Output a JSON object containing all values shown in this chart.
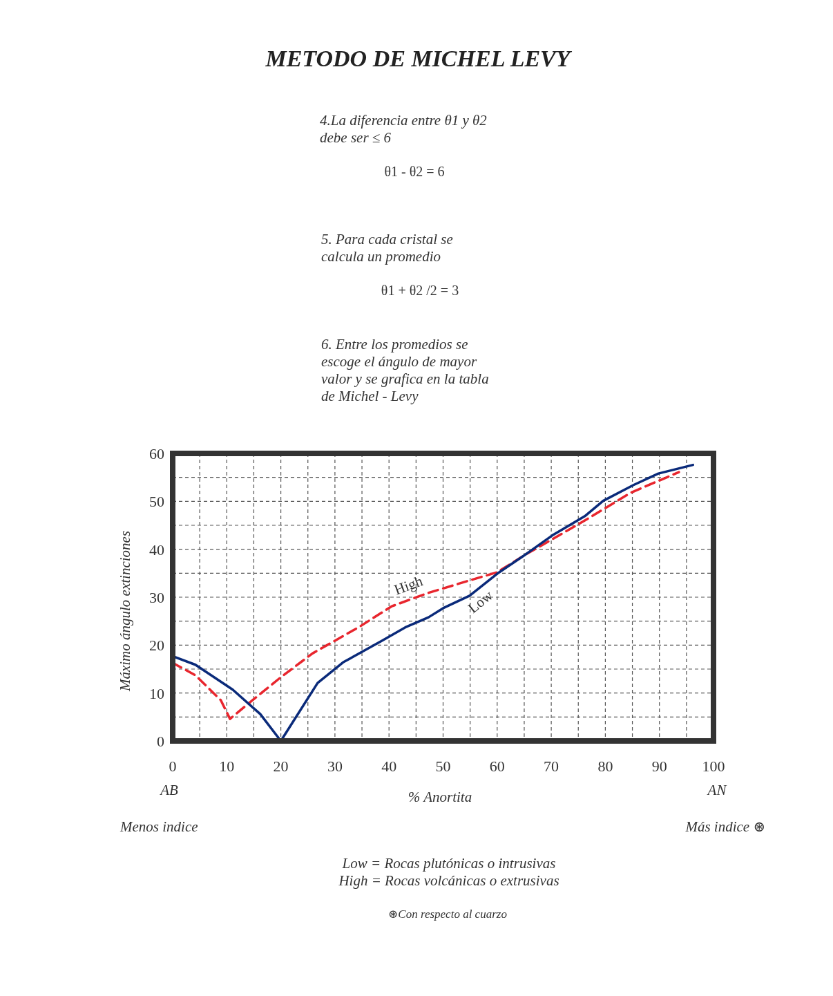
{
  "chart_data": {
    "type": "line",
    "title": "METODO DE MICHEL LEVY",
    "xlabel": "% Anortita",
    "ylabel": "Máximo ángulo extinciones",
    "xlim": [
      0,
      100
    ],
    "ylim": [
      0,
      60
    ],
    "xticks": [
      0,
      {
        "value": 5,
        "label": null
      },
      10,
      {
        "value": 15,
        "label": null
      },
      20,
      {
        "value": 25,
        "label": null
      },
      30,
      {
        "value": 35,
        "label": null
      },
      40,
      {
        "value": 45,
        "label": null
      },
      50,
      {
        "value": 55,
        "label": null
      },
      60,
      {
        "value": 65,
        "label": null
      },
      70,
      {
        "value": 75,
        "label": null
      },
      80,
      {
        "value": 85,
        "label": null
      },
      90,
      {
        "value": 95,
        "label": null
      },
      100
    ],
    "yticks": [
      0,
      {
        "value": 5,
        "label": null
      },
      10,
      {
        "value": 15,
        "label": null
      },
      20,
      {
        "value": 25,
        "label": null
      },
      30,
      {
        "value": 35,
        "label": null
      },
      40,
      {
        "value": 45,
        "label": null
      },
      50,
      {
        "value": 55,
        "label": null
      },
      60
    ],
    "grid": true,
    "series": [
      {
        "name": "High",
        "color": "#e8262e",
        "line_style": "dashed",
        "x": [
          0,
          4.2,
          8.9,
          10.6,
          14,
          20,
          25.9,
          34.5,
          40.5,
          47.3,
          54.9,
          60,
          65.1,
          70.2,
          76.2,
          84.7,
          93.6
        ],
        "values": [
          16.3,
          13.7,
          8.5,
          4.6,
          7.8,
          13.3,
          18.3,
          23.8,
          28.1,
          30.9,
          33.5,
          35.2,
          38.8,
          42.1,
          46,
          51.8,
          56.1
        ]
      },
      {
        "name": "Low",
        "color": "#0a2a7a",
        "line_style": "solid",
        "x": [
          0,
          4.2,
          11.1,
          16.2,
          20,
          26.8,
          31.5,
          38.7,
          43,
          47.3,
          50,
          54.9,
          60,
          65.1,
          70.2,
          76.2,
          79.6,
          85.2,
          89.8,
          96.2
        ],
        "values": [
          17.7,
          15.9,
          10.7,
          5.6,
          0,
          12.1,
          16.4,
          20.9,
          23.7,
          25.8,
          27.7,
          30.3,
          34.9,
          38.8,
          42.9,
          46.9,
          50.1,
          53.4,
          55.8,
          57.6
        ]
      }
    ],
    "annotations": [
      "4.La diferencia entre θ1 y θ2\ndebe ser ≤ 6",
      "θ1 - θ2 = 6",
      "5. Para cada cristal se\ncalcula un promedio",
      "θ1 + θ2 /2 = 3",
      "6. Entre los promedios se\nescoge el ángulo de mayor\nvalor y se grafica en la tabla\nde Michel - Levy",
      "AB",
      "AN",
      "Menos indice",
      "Más indice ⊛",
      "Low = Rocas plutónicas o intrusivas\nHigh = Rocas volcánicas o extrusivas",
      "⊛Con respecto al cuarzo"
    ]
  }
}
